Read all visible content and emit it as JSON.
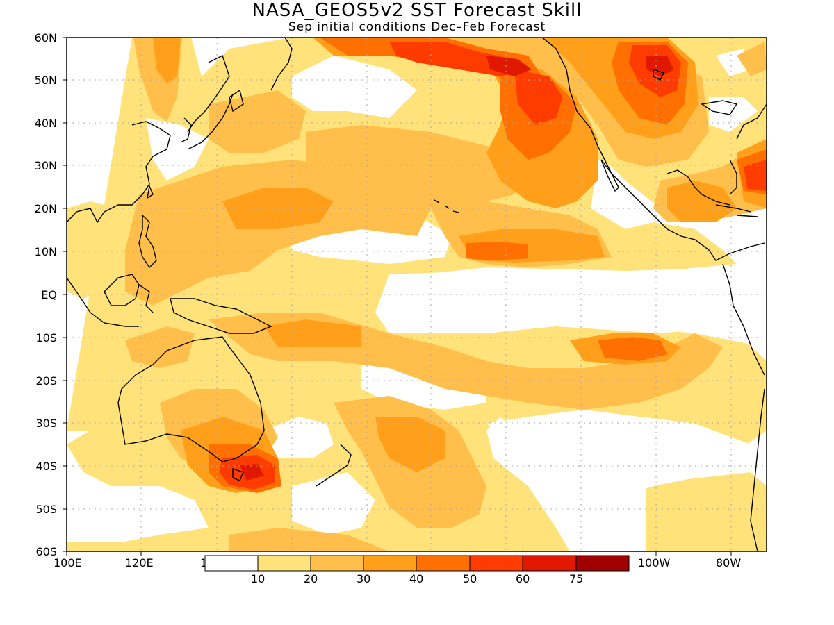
{
  "title": "NASA_GEOS5v2 SST Forecast Skill",
  "subtitle": "Sep initial conditions  Dec–Feb Forecast",
  "lat_labels": [
    "60N",
    "50N",
    "40N",
    "30N",
    "20N",
    "10N",
    "EQ",
    "10S",
    "20S",
    "30S",
    "40S",
    "50S",
    "60S"
  ],
  "lon_labels": [
    "100E",
    "120E",
    "1",
    "100W",
    "80W"
  ],
  "colorbar": {
    "labels": [
      "10",
      "20",
      "30",
      "40",
      "50",
      "60",
      "75"
    ],
    "colors": [
      "#ffffff",
      "#ffe27a",
      "#ffbf4a",
      "#ff9f1a",
      "#ff7000",
      "#ff3c00",
      "#e01800",
      "#a00000"
    ]
  },
  "map": {
    "grid": "dotted",
    "lat_range": [
      "60S",
      "60N"
    ],
    "lon_range": [
      "100E",
      "70W"
    ]
  }
}
